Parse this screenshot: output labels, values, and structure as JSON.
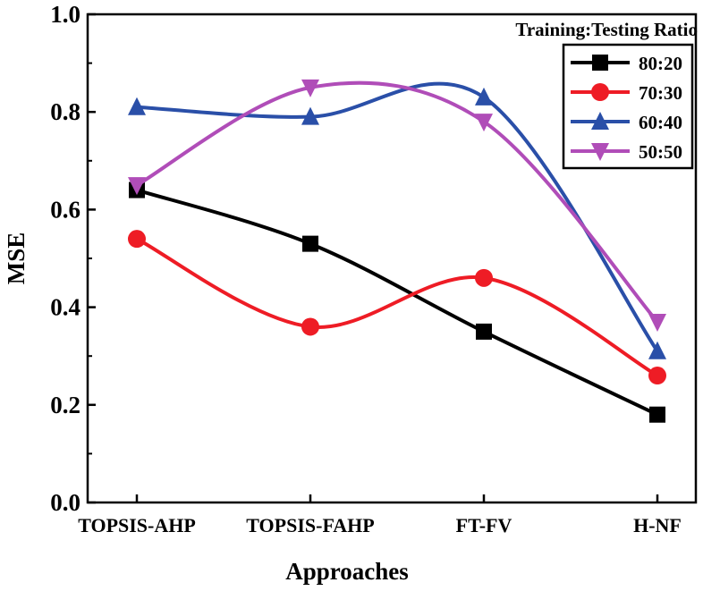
{
  "chart_data": {
    "type": "line",
    "title": "",
    "xlabel": "Approaches",
    "ylabel": "MSE",
    "categories": [
      "TOPSIS-AHP",
      "TOPSIS-FAHP",
      "FT-FV",
      "H-NF"
    ],
    "ylim": [
      0.0,
      1.0
    ],
    "yticks": [
      "0.0",
      "0.2",
      "0.4",
      "0.6",
      "0.8",
      "1.0"
    ],
    "grid": false,
    "smooth": true,
    "legend": {
      "title": "Training:Testing Ratio",
      "placement": "top-right"
    },
    "series": [
      {
        "name": "80:20",
        "color": "#000000",
        "marker": "square",
        "values": [
          0.64,
          0.53,
          0.35,
          0.18
        ]
      },
      {
        "name": "70:30",
        "color": "#ee1c25",
        "marker": "circle",
        "values": [
          0.54,
          0.36,
          0.46,
          0.26
        ]
      },
      {
        "name": "60:40",
        "color": "#2a4fa8",
        "marker": "triangle-up",
        "values": [
          0.81,
          0.79,
          0.83,
          0.31
        ]
      },
      {
        "name": "50:50",
        "color": "#b04db8",
        "marker": "triangle-down",
        "values": [
          0.65,
          0.85,
          0.78,
          0.37
        ]
      }
    ]
  }
}
